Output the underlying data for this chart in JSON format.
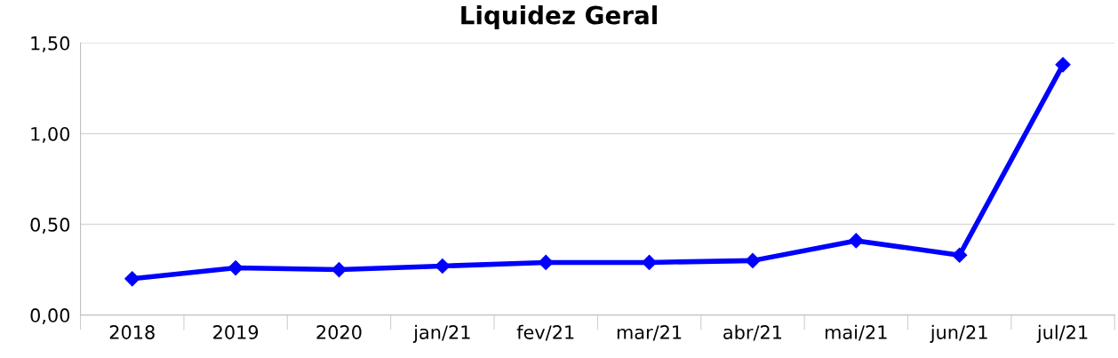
{
  "chart_data": {
    "type": "line",
    "title": "Liquidez Geral",
    "categories": [
      "2018",
      "2019",
      "2020",
      "jan/21",
      "fev/21",
      "mar/21",
      "abr/21",
      "mai/21",
      "jun/21",
      "jul/21"
    ],
    "series": [
      {
        "color": "#0000ff",
        "values": [
          0.2,
          0.26,
          0.25,
          0.27,
          0.29,
          0.29,
          0.3,
          0.41,
          0.33,
          1.38
        ]
      }
    ],
    "ylim": [
      0,
      1.5
    ],
    "yticks": [
      {
        "value": 0,
        "label": "0,00"
      },
      {
        "value": 0.5,
        "label": "0,50"
      },
      {
        "value": 1.0,
        "label": "1,00"
      },
      {
        "value": 1.5,
        "label": "1,50"
      }
    ],
    "grid": "y",
    "marker": "diamond",
    "line_style": "solid",
    "legend": false
  }
}
